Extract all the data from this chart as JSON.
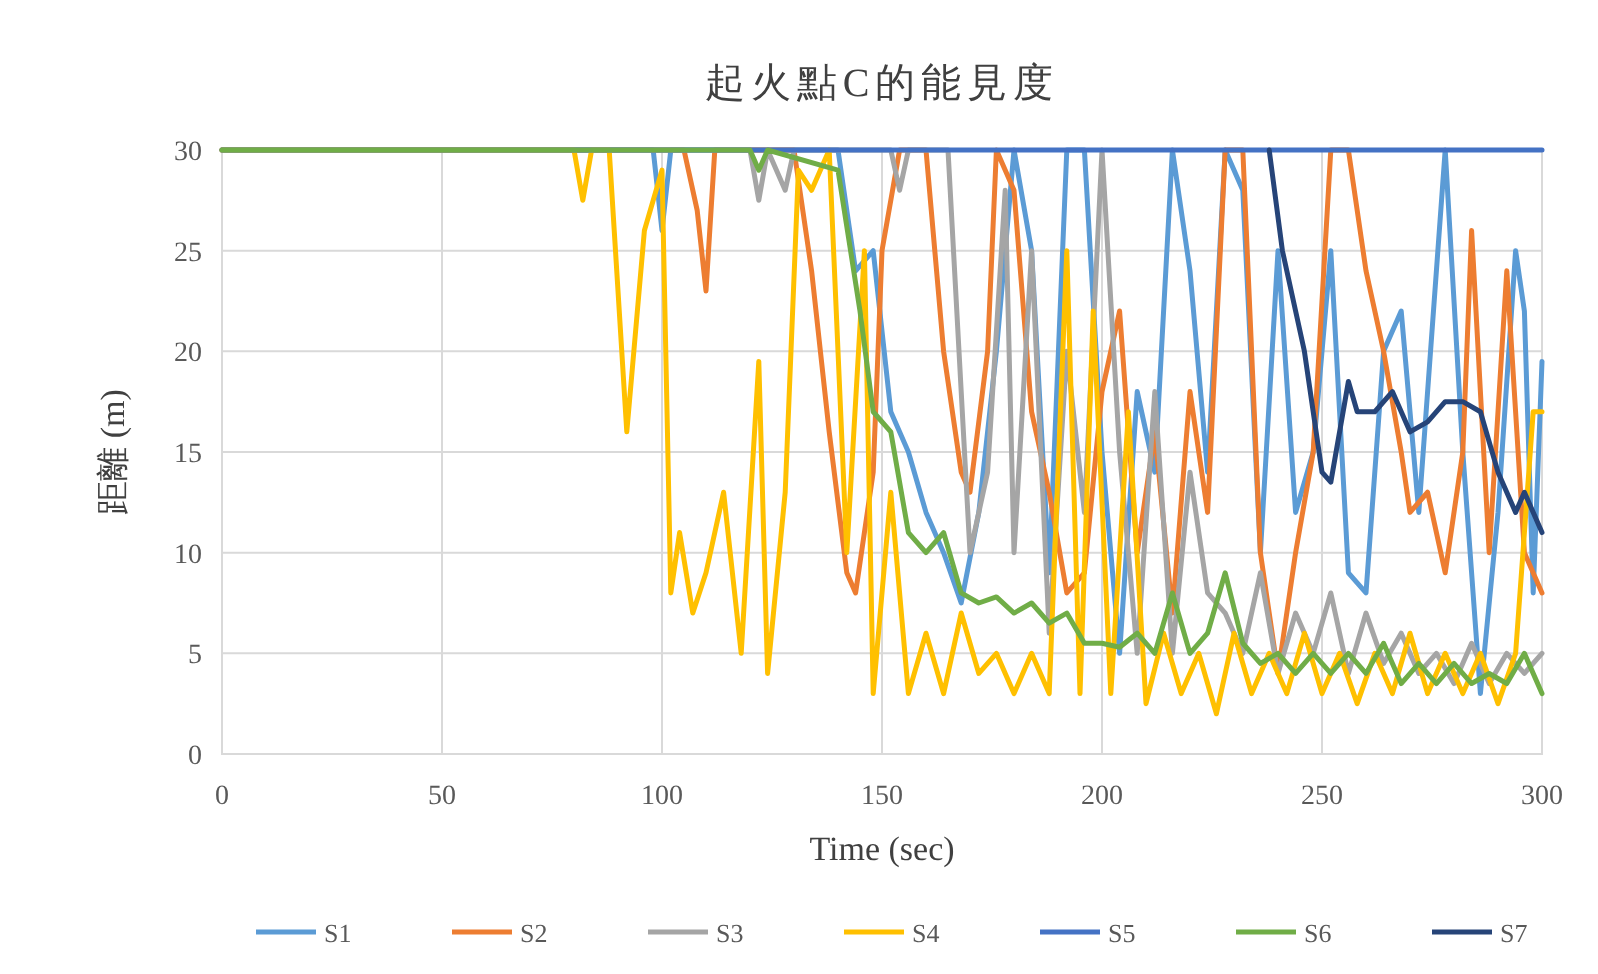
{
  "chart_data": {
    "type": "line",
    "title": "起火點C的能見度",
    "xlabel": "Time (sec)",
    "ylabel": "距離 (m)",
    "xlim": [
      0,
      300
    ],
    "xticks": [
      0,
      50,
      100,
      150,
      200,
      250,
      300
    ],
    "ylim": [
      0,
      30
    ],
    "yticks": [
      0,
      5,
      10,
      15,
      20,
      25,
      30
    ],
    "grid": true,
    "legend": "bottom",
    "marker": "none",
    "line_style": "solid",
    "series": [
      {
        "name": "S1",
        "color": "#5b9bd5",
        "x": [
          0,
          98,
          100,
          102,
          140,
          144,
          148,
          152,
          156,
          160,
          164,
          168,
          172,
          176,
          180,
          184,
          188,
          192,
          196,
          200,
          204,
          208,
          212,
          216,
          220,
          224,
          228,
          232,
          236,
          240,
          244,
          248,
          252,
          256,
          260,
          264,
          268,
          272,
          278,
          282,
          286,
          290,
          294,
          296,
          298,
          300
        ],
        "values": [
          30,
          30,
          26,
          30,
          30,
          24,
          25,
          17,
          15,
          12,
          10,
          7.5,
          12,
          20,
          30,
          25,
          9,
          30,
          30,
          15,
          5,
          18,
          14,
          30,
          24,
          14,
          30,
          28,
          10,
          25,
          12,
          15,
          25,
          9,
          8,
          20,
          22,
          12,
          30,
          15,
          3,
          12,
          25,
          22,
          8,
          19.5
        ]
      },
      {
        "name": "S2",
        "color": "#ed7d31",
        "x": [
          0,
          105,
          108,
          110,
          112,
          130,
          134,
          138,
          142,
          144,
          148,
          150,
          154,
          160,
          164,
          168,
          170,
          174,
          176,
          180,
          184,
          188,
          192,
          196,
          200,
          204,
          208,
          212,
          216,
          220,
          224,
          228,
          232,
          236,
          240,
          244,
          248,
          252,
          256,
          260,
          264,
          268,
          270,
          274,
          278,
          282,
          284,
          288,
          292,
          296,
          300
        ],
        "values": [
          30,
          30,
          27,
          23,
          30,
          30,
          24,
          16,
          9,
          8,
          14,
          25,
          30,
          30,
          20,
          14,
          13,
          20,
          30,
          28,
          17,
          13,
          8,
          9,
          18,
          22,
          10,
          16,
          7,
          18,
          12,
          30,
          30,
          10,
          4,
          10,
          15,
          30,
          30,
          24,
          20,
          15,
          12,
          13,
          9,
          15,
          26,
          10,
          24,
          10,
          8
        ]
      },
      {
        "name": "S3",
        "color": "#a5a5a5",
        "x": [
          0,
          120,
          122,
          124,
          128,
          130,
          152,
          154,
          156,
          165,
          170,
          174,
          178,
          180,
          184,
          188,
          192,
          196,
          200,
          204,
          208,
          212,
          216,
          220,
          224,
          228,
          232,
          236,
          240,
          244,
          248,
          252,
          256,
          260,
          264,
          268,
          272,
          276,
          280,
          284,
          288,
          292,
          296,
          300
        ],
        "values": [
          30,
          30,
          27.5,
          30,
          28,
          30,
          30,
          28,
          30,
          30,
          10,
          14,
          28,
          10,
          25,
          6,
          20,
          12,
          30,
          15,
          5,
          18,
          5,
          14,
          8,
          7,
          5,
          9,
          4,
          7,
          5,
          8,
          4,
          7,
          4.5,
          6,
          4,
          5,
          3.5,
          5.5,
          3.5,
          5,
          4,
          5
        ]
      },
      {
        "name": "S4",
        "color": "#ffc000",
        "x": [
          0,
          80,
          82,
          84,
          88,
          92,
          96,
          100,
          102,
          104,
          107,
          110,
          114,
          118,
          122,
          124,
          128,
          131,
          134,
          138,
          142,
          146,
          148,
          152,
          156,
          160,
          164,
          168,
          172,
          176,
          180,
          184,
          188,
          192,
          195,
          198,
          202,
          206,
          210,
          214,
          218,
          222,
          226,
          230,
          234,
          238,
          242,
          246,
          250,
          254,
          258,
          262,
          266,
          270,
          274,
          278,
          282,
          286,
          290,
          294,
          298,
          300
        ],
        "values": [
          30,
          30,
          27.5,
          30,
          30,
          16,
          26,
          29,
          8,
          11,
          7,
          9,
          13,
          5,
          19.5,
          4,
          13,
          29,
          28,
          30,
          10,
          25,
          3,
          13,
          3,
          6,
          3,
          7,
          4,
          5,
          3,
          5,
          3,
          25,
          3,
          22,
          3,
          17,
          2.5,
          6,
          3,
          5,
          2,
          6,
          3,
          5,
          3,
          6,
          3,
          5,
          2.5,
          5,
          3,
          6,
          3,
          5,
          3,
          5,
          2.5,
          5,
          17,
          17
        ]
      },
      {
        "name": "S5",
        "color": "#4472c4",
        "x": [
          0,
          300
        ],
        "values": [
          30,
          30
        ]
      },
      {
        "name": "S6",
        "color": "#70ad47",
        "x": [
          0,
          120,
          122,
          124,
          140,
          145,
          148,
          152,
          156,
          160,
          164,
          168,
          172,
          176,
          180,
          184,
          188,
          192,
          196,
          200,
          204,
          208,
          212,
          216,
          220,
          224,
          228,
          232,
          236,
          240,
          244,
          248,
          252,
          256,
          260,
          264,
          268,
          272,
          276,
          280,
          284,
          288,
          292,
          296,
          300
        ],
        "values": [
          30,
          30,
          29,
          30,
          29,
          22,
          17,
          16,
          11,
          10,
          11,
          8,
          7.5,
          7.8,
          7,
          7.5,
          6.5,
          7,
          5.5,
          5.5,
          5.3,
          6,
          5,
          8,
          5,
          6,
          9,
          5.5,
          4.5,
          5,
          4,
          5,
          4,
          5,
          4,
          5.5,
          3.5,
          4.5,
          3.5,
          4.5,
          3.5,
          4,
          3.5,
          5,
          3
        ]
      },
      {
        "name": "S7",
        "color": "#264478",
        "x": [
          238,
          241,
          244,
          246,
          250,
          252,
          256,
          258,
          262,
          266,
          270,
          274,
          278,
          282,
          286,
          290,
          294,
          296,
          300
        ],
        "values": [
          30,
          25,
          22,
          20,
          14,
          13.5,
          18.5,
          17,
          17,
          18,
          16,
          16.5,
          17.5,
          17.5,
          17,
          14,
          12,
          13,
          11
        ]
      }
    ]
  }
}
